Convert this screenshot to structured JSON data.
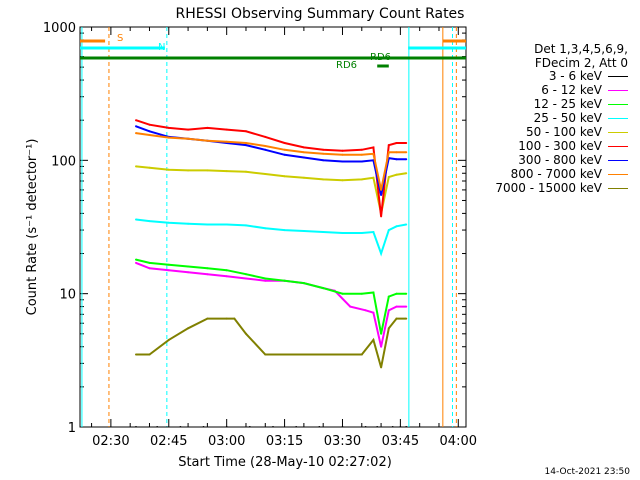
{
  "chart_data": {
    "type": "line",
    "title": "RHESSI Observing Summary Count Rates",
    "xlabel": "Start Time (28-May-10 02:27:02)",
    "ylabel": "Count Rate (s⁻¹ detector⁻¹)",
    "y_scale": "log",
    "ylim": [
      1,
      1000
    ],
    "xlim_minutes": [
      142,
      242
    ],
    "x_ticks": [
      {
        "label": "02:30",
        "min": 150
      },
      {
        "label": "02:45",
        "min": 165
      },
      {
        "label": "03:00",
        "min": 180
      },
      {
        "label": "03:15",
        "min": 195
      },
      {
        "label": "03:30",
        "min": 210
      },
      {
        "label": "03:45",
        "min": 225
      },
      {
        "label": "04:00",
        "min": 240
      }
    ],
    "y_ticks": [
      {
        "label": "1",
        "v": 1
      },
      {
        "label": "10",
        "v": 10
      },
      {
        "label": "100",
        "v": 100
      },
      {
        "label": "1000",
        "v": 1000
      }
    ],
    "legend_header": [
      "Det 1,3,4,5,6,9,",
      "FDecim 2, Att 0"
    ],
    "series": [
      {
        "name": "3 - 6 keV",
        "color": "#000000",
        "x": [
          156.5,
          162,
          168,
          174,
          180,
          186,
          192,
          198,
          204,
          210,
          216,
          219,
          223,
          225,
          226.5
        ],
        "y": [
          1,
          1,
          1,
          1,
          1,
          1,
          1,
          1,
          1,
          1,
          1,
          1,
          1,
          1,
          1
        ]
      },
      {
        "name": "6 - 12 keV",
        "color": "#ff00ff",
        "x": [
          156.5,
          160,
          165,
          170,
          175,
          180,
          185,
          190,
          195,
          200,
          205,
          208,
          212,
          216,
          218,
          220,
          222,
          224,
          226.5
        ],
        "y": [
          17,
          15.5,
          15,
          14.5,
          14,
          13.5,
          13,
          12.5,
          12.5,
          12,
          11,
          10.5,
          8,
          7.5,
          7.2,
          4,
          7.5,
          8,
          8
        ]
      },
      {
        "name": "12 - 25 keV",
        "color": "#00ff00",
        "x": [
          156.5,
          160,
          165,
          170,
          175,
          180,
          185,
          190,
          195,
          200,
          205,
          210,
          215,
          218,
          220,
          222,
          224,
          226.5
        ],
        "y": [
          18,
          17,
          16.5,
          16,
          15.5,
          15,
          14,
          13,
          12.5,
          12,
          11,
          10,
          10,
          10.2,
          5,
          9.5,
          10,
          10
        ]
      },
      {
        "name": "25 - 50 keV",
        "color": "#00ffff",
        "x": [
          156.5,
          160,
          165,
          170,
          175,
          180,
          185,
          190,
          195,
          200,
          205,
          210,
          215,
          218,
          220,
          222,
          224,
          226.5
        ],
        "y": [
          36,
          35,
          34,
          33.5,
          33,
          33,
          32.5,
          31,
          30,
          29.5,
          29,
          28.5,
          28.5,
          29,
          20,
          30,
          32,
          33
        ]
      },
      {
        "name": "50 - 100 keV",
        "color": "#cccc00",
        "x": [
          156.5,
          160,
          165,
          170,
          175,
          180,
          185,
          190,
          195,
          200,
          205,
          210,
          215,
          218,
          220,
          222,
          224,
          226.5
        ],
        "y": [
          90,
          88,
          85,
          84,
          84,
          83,
          82,
          79,
          76,
          74,
          72,
          71,
          72,
          74,
          40,
          75,
          78,
          80
        ]
      },
      {
        "name": "100 - 300 keV",
        "color": "#ff0000",
        "x": [
          156.5,
          160,
          165,
          170,
          175,
          180,
          185,
          190,
          195,
          200,
          205,
          210,
          215,
          218,
          220,
          222,
          224,
          226.5
        ],
        "y": [
          200,
          185,
          175,
          170,
          175,
          170,
          165,
          150,
          135,
          125,
          120,
          118,
          120,
          125,
          38,
          130,
          135,
          135
        ]
      },
      {
        "name": "300 - 800 keV",
        "color": "#0000ff",
        "x": [
          156.5,
          160,
          165,
          170,
          175,
          180,
          185,
          190,
          195,
          200,
          205,
          210,
          215,
          218,
          220,
          222,
          224,
          226.5
        ],
        "y": [
          180,
          165,
          150,
          145,
          140,
          135,
          130,
          120,
          110,
          105,
          100,
          98,
          98,
          100,
          55,
          104,
          102,
          102
        ]
      },
      {
        "name": "800 - 7000 keV",
        "color": "#ff8000",
        "x": [
          156.5,
          160,
          165,
          170,
          175,
          180,
          185,
          190,
          195,
          200,
          205,
          210,
          215,
          218,
          220,
          222,
          224,
          226.5
        ],
        "y": [
          160,
          155,
          148,
          145,
          140,
          138,
          135,
          128,
          120,
          115,
          112,
          110,
          110,
          112,
          60,
          115,
          115,
          115
        ]
      },
      {
        "name": "7000 - 15000 keV",
        "color": "#808000",
        "x": [
          156.5,
          160,
          165,
          170,
          175,
          180,
          182,
          185,
          190,
          195,
          200,
          205,
          210,
          215,
          218,
          220,
          222,
          224,
          226.5
        ],
        "y": [
          3.5,
          3.5,
          4.5,
          5.5,
          6.5,
          6.5,
          6.5,
          5,
          3.5,
          3.5,
          3.5,
          3.5,
          3.5,
          3.5,
          4.5,
          2.8,
          5.5,
          6.5,
          6.5
        ]
      }
    ],
    "annotations": [
      {
        "label": "S",
        "color": "#ff8000"
      },
      {
        "label": "N",
        "color": "#00ffff"
      },
      {
        "label": "RD6",
        "color": "#008000"
      },
      {
        "label": "RD6",
        "color": "#008000"
      }
    ]
  },
  "footer": "14-Oct-2021 23:50"
}
